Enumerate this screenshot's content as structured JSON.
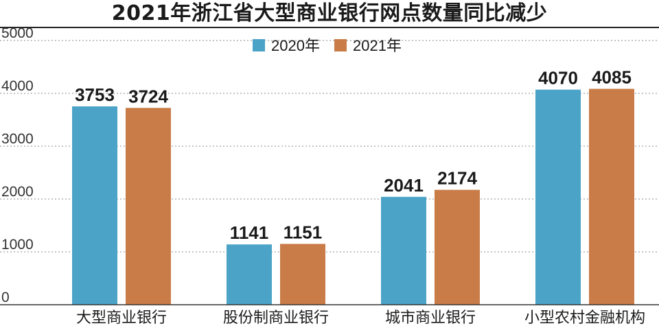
{
  "chart_data": {
    "type": "bar",
    "title": "2021年浙江省大型商业银行网点数量同比减少",
    "xlabel": "",
    "ylabel": "",
    "categories": [
      "大型商业银行",
      "股份制商业银行",
      "城市商业银行",
      "小型农村金融机构"
    ],
    "series": [
      {
        "name": "2020年",
        "values": [
          3753,
          1141,
          2041,
          4070
        ],
        "color": "#4ba3c7"
      },
      {
        "name": "2021年",
        "values": [
          3724,
          1151,
          2174,
          4085
        ],
        "color": "#c97c48"
      }
    ],
    "ylim": [
      0,
      5000
    ],
    "yticks": [
      0,
      1000,
      2000,
      3000,
      4000,
      5000
    ],
    "grid": true,
    "legend_position": "top-center",
    "data_labels": true
  }
}
